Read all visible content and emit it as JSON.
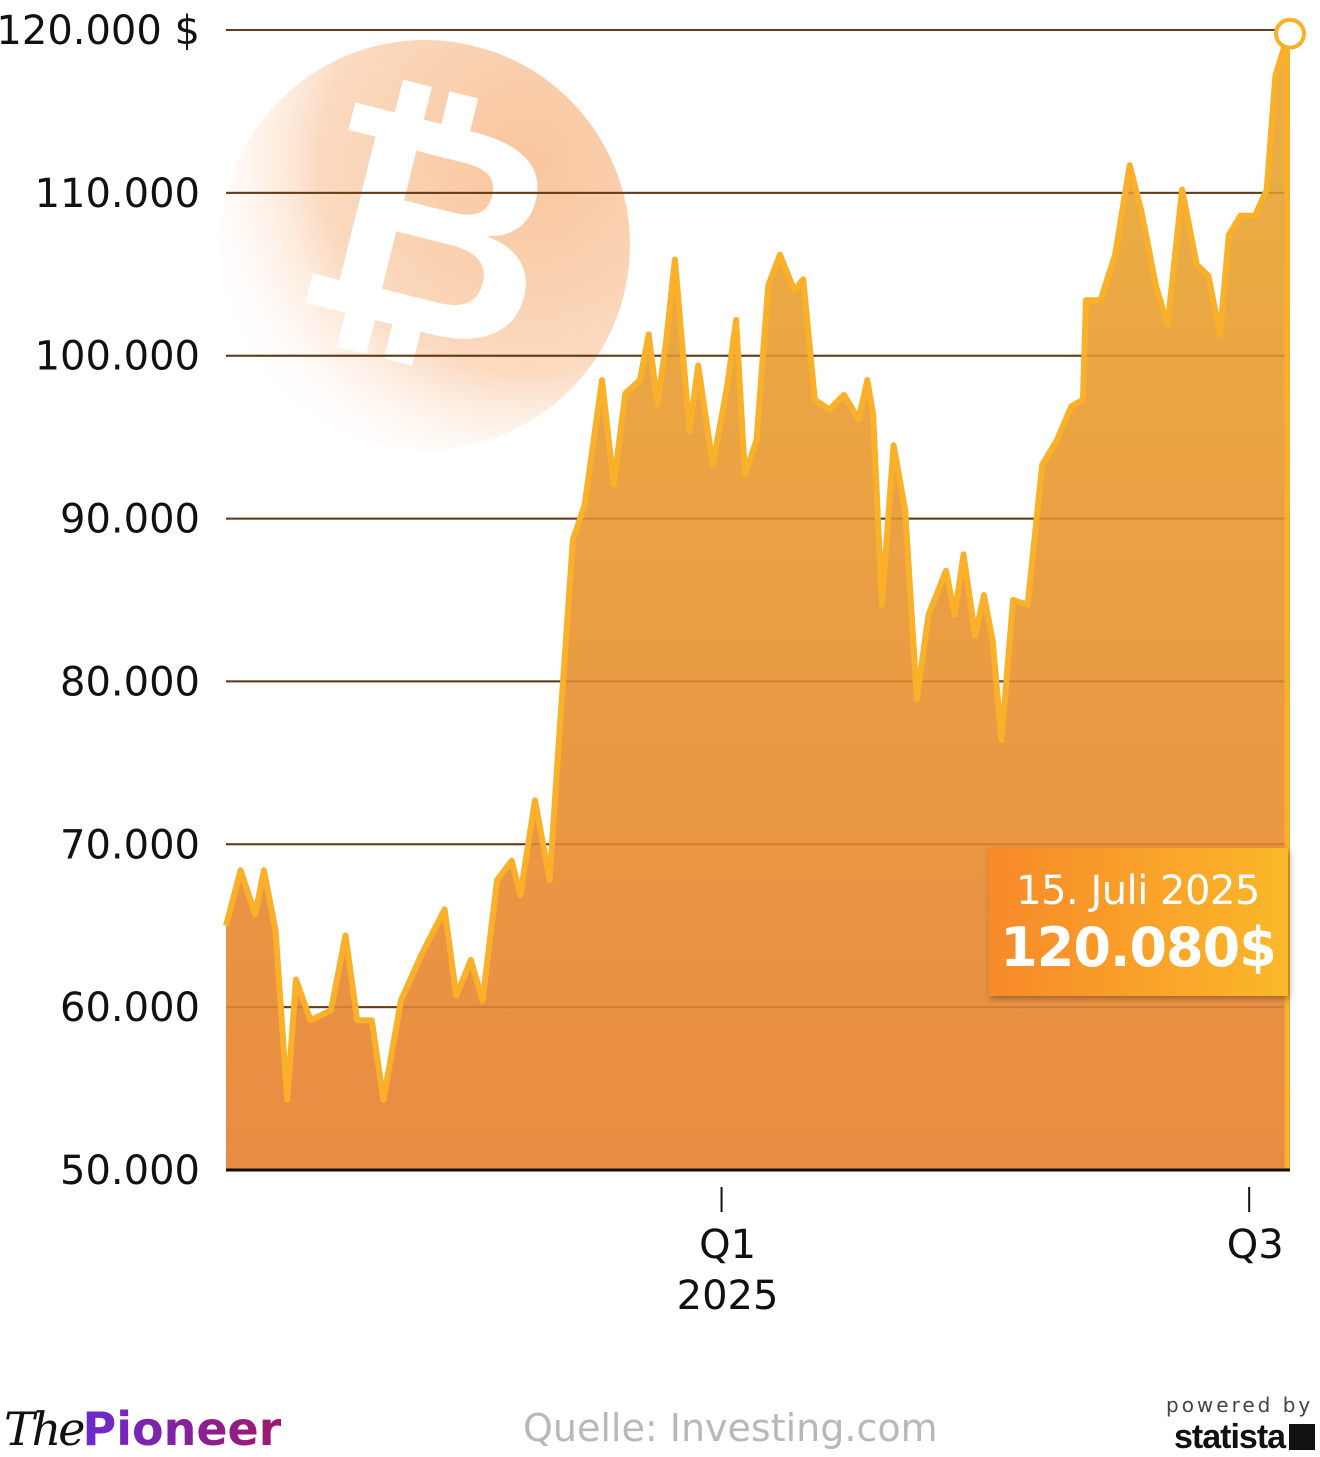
{
  "chart_data": {
    "type": "area",
    "title": "",
    "xlabel": "",
    "ylabel": "",
    "ylim": [
      50000,
      120000
    ],
    "y_ticks": [
      {
        "value": 120000,
        "label": "120.000 $"
      },
      {
        "value": 110000,
        "label": "110.000"
      },
      {
        "value": 100000,
        "label": "100.000"
      },
      {
        "value": 90000,
        "label": "90.000"
      },
      {
        "value": 80000,
        "label": "80.000"
      },
      {
        "value": 70000,
        "label": "70.000"
      },
      {
        "value": 60000,
        "label": "60.000"
      },
      {
        "value": 50000,
        "label": "50.000"
      }
    ],
    "xlim": [
      "2024-07-15",
      "2025-07-15"
    ],
    "x_ticks": [
      {
        "date": "2025-01-01",
        "label": "Q1",
        "sublabel": "2025"
      },
      {
        "date": "2025-07-01",
        "label": "Q3",
        "sublabel": ""
      }
    ],
    "grid": true,
    "colors": {
      "line": "#fbb02a",
      "area_top": "#ebb043",
      "area_bottom": "#e98c43",
      "grid": "#111111"
    },
    "series": [
      {
        "x": [
          "2024-07-15",
          "2024-07-20",
          "2024-07-25",
          "2024-07-28",
          "2024-08-01",
          "2024-08-05",
          "2024-08-08",
          "2024-08-13",
          "2024-08-20",
          "2024-08-25",
          "2024-08-29",
          "2024-09-03",
          "2024-09-07",
          "2024-09-13",
          "2024-09-20",
          "2024-09-28",
          "2024-10-02",
          "2024-10-07",
          "2024-10-11",
          "2024-10-16",
          "2024-10-21",
          "2024-10-24",
          "2024-10-29",
          "2024-11-03",
          "2024-11-06",
          "2024-11-11",
          "2024-11-15",
          "2024-11-21",
          "2024-11-25",
          "2024-11-29",
          "2024-12-04",
          "2024-12-07",
          "2024-12-10",
          "2024-12-13",
          "2024-12-16",
          "2024-12-21",
          "2024-12-24",
          "2024-12-29",
          "2025-01-03",
          "2025-01-06",
          "2025-01-09",
          "2025-01-13",
          "2025-01-17",
          "2025-01-21",
          "2025-01-26",
          "2025-01-29",
          "2025-02-02",
          "2025-02-07",
          "2025-02-12",
          "2025-02-17",
          "2025-02-20",
          "2025-02-22",
          "2025-02-25",
          "2025-03-01",
          "2025-03-05",
          "2025-03-09",
          "2025-03-13",
          "2025-03-19",
          "2025-03-22",
          "2025-03-25",
          "2025-03-29",
          "2025-04-01",
          "2025-04-04",
          "2025-04-07",
          "2025-04-11",
          "2025-04-16",
          "2025-04-21",
          "2025-04-26",
          "2025-05-01",
          "2025-05-05",
          "2025-05-06",
          "2025-05-11",
          "2025-05-16",
          "2025-05-21",
          "2025-05-25",
          "2025-05-30",
          "2025-06-03",
          "2025-06-08",
          "2025-06-13",
          "2025-06-17",
          "2025-06-21",
          "2025-06-24",
          "2025-06-28",
          "2025-07-03",
          "2025-07-07",
          "2025-07-10",
          "2025-07-15"
        ],
        "y": [
          65000,
          68400,
          65700,
          68400,
          64700,
          54300,
          61700,
          59200,
          59800,
          64400,
          59200,
          59200,
          54300,
          60400,
          63200,
          66000,
          60700,
          62900,
          60400,
          67800,
          69000,
          66900,
          72700,
          67800,
          75800,
          88700,
          90800,
          98500,
          92100,
          97700,
          98500,
          101300,
          97000,
          100900,
          105900,
          95400,
          99400,
          93300,
          98200,
          102200,
          92700,
          94800,
          104300,
          106200,
          104000,
          104700,
          97300,
          96700,
          97600,
          96100,
          98500,
          96400,
          84700,
          94500,
          90500,
          78900,
          84100,
          86800,
          84100,
          87800,
          82800,
          85300,
          82500,
          76400,
          85000,
          84700,
          93300,
          94800,
          96900,
          97300,
          103400,
          103400,
          106200,
          111700,
          108900,
          104300,
          101900,
          110200,
          105600,
          104900,
          101300,
          107400,
          108600,
          108600,
          110200,
          117200,
          120080
        ]
      }
    ],
    "annotation": {
      "date_label": "15. Juli 2025",
      "value_label": "120.080$"
    }
  },
  "branding": {
    "left_logo_the": "The",
    "left_logo_pioneer": "Pioneer",
    "right_powered": "powered by",
    "right_logo": "statista"
  },
  "source": "Quelle: Investing.com"
}
